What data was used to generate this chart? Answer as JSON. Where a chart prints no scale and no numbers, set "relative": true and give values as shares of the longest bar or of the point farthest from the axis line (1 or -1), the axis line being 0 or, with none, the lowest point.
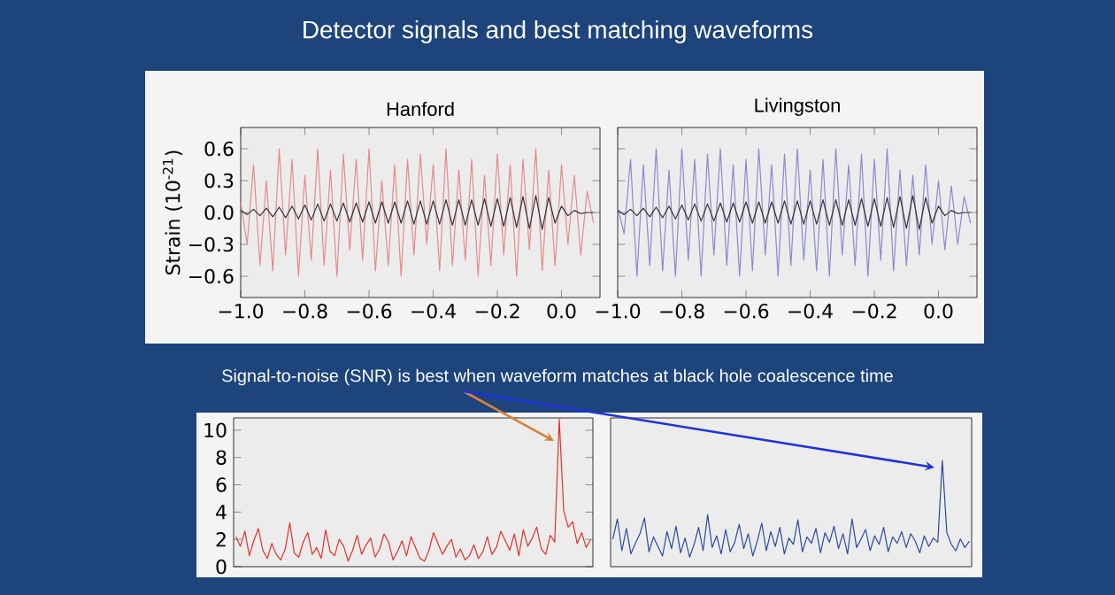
{
  "chart_data": [
    {
      "type": "line",
      "title": "Hanford",
      "ylabel": "Strain (10$^{-21}$)",
      "annotations": [
        "Detector signals and best matching waveforms"
      ],
      "x": [
        -1.0,
        -0.98,
        -0.96,
        -0.94,
        -0.92,
        -0.9,
        -0.88,
        -0.86,
        -0.84,
        -0.82,
        -0.8,
        -0.78,
        -0.76,
        -0.74,
        -0.72,
        -0.7,
        -0.68,
        -0.66,
        -0.64,
        -0.62,
        -0.6,
        -0.58,
        -0.56,
        -0.54,
        -0.52,
        -0.5,
        -0.48,
        -0.46,
        -0.44,
        -0.42,
        -0.4,
        -0.38,
        -0.36,
        -0.34,
        -0.32,
        -0.3,
        -0.28,
        -0.26,
        -0.24,
        -0.22,
        -0.2,
        -0.18,
        -0.16,
        -0.14,
        -0.12,
        -0.1,
        -0.08,
        -0.06,
        -0.04,
        -0.02,
        0.0,
        0.02,
        0.04,
        0.06,
        0.08,
        0.1
      ],
      "xlim": [
        -1.0,
        0.12
      ],
      "ylim": [
        -0.8,
        0.8
      ],
      "xticks": [
        {
          "value": -1.0,
          "label": "−1.0"
        },
        {
          "value": -0.8,
          "label": "−0.8"
        },
        {
          "value": -0.6,
          "label": "−0.6"
        },
        {
          "value": -0.4,
          "label": "−0.4"
        },
        {
          "value": -0.2,
          "label": "−0.2"
        },
        {
          "value": 0.0,
          "label": "0.0"
        }
      ],
      "yticks": [
        {
          "value": -0.6,
          "label": "−0.6"
        },
        {
          "value": -0.3,
          "label": "−0.3"
        },
        {
          "value": 0.0,
          "label": "0.0"
        },
        {
          "value": 0.3,
          "label": "0.3"
        },
        {
          "value": 0.6,
          "label": "0.6"
        }
      ],
      "series": [
        {
          "color": "#e48a8e",
          "values": [
            0.1,
            -0.3,
            0.45,
            -0.5,
            0.3,
            -0.55,
            0.6,
            -0.4,
            0.5,
            -0.6,
            0.35,
            -0.45,
            0.6,
            -0.5,
            0.4,
            -0.6,
            0.55,
            -0.35,
            0.5,
            -0.45,
            0.6,
            -0.55,
            0.3,
            -0.5,
            0.45,
            -0.6,
            0.5,
            -0.4,
            0.55,
            -0.3,
            0.45,
            -0.55,
            0.6,
            -0.5,
            0.4,
            -0.45,
            0.5,
            -0.6,
            0.35,
            -0.5,
            0.55,
            -0.4,
            0.45,
            -0.6,
            0.5,
            -0.35,
            0.6,
            -0.55,
            0.4,
            -0.5,
            0.45,
            -0.3,
            0.35,
            -0.4,
            0.2,
            -0.1
          ]
        },
        {
          "color": "#333333",
          "values": [
            0.02,
            -0.02,
            0.03,
            -0.03,
            0.04,
            -0.04,
            0.05,
            -0.05,
            0.06,
            -0.06,
            0.07,
            -0.07,
            0.08,
            -0.08,
            0.08,
            -0.08,
            0.09,
            -0.09,
            0.09,
            -0.09,
            0.1,
            -0.1,
            0.1,
            -0.1,
            0.1,
            -0.1,
            0.11,
            -0.11,
            0.11,
            -0.11,
            0.11,
            -0.11,
            0.12,
            -0.12,
            0.12,
            -0.12,
            0.12,
            -0.12,
            0.13,
            -0.13,
            0.13,
            -0.13,
            0.14,
            -0.14,
            0.15,
            -0.15,
            0.16,
            -0.16,
            0.14,
            -0.1,
            0.06,
            -0.03,
            0.02,
            -0.01,
            0.0,
            0.0
          ]
        }
      ]
    },
    {
      "type": "line",
      "title": "Livingston",
      "tick_labels": "x",
      "x": [
        -1.0,
        -0.98,
        -0.96,
        -0.94,
        -0.92,
        -0.9,
        -0.88,
        -0.86,
        -0.84,
        -0.82,
        -0.8,
        -0.78,
        -0.76,
        -0.74,
        -0.72,
        -0.7,
        -0.68,
        -0.66,
        -0.64,
        -0.62,
        -0.6,
        -0.58,
        -0.56,
        -0.54,
        -0.52,
        -0.5,
        -0.48,
        -0.46,
        -0.44,
        -0.42,
        -0.4,
        -0.38,
        -0.36,
        -0.34,
        -0.32,
        -0.3,
        -0.28,
        -0.26,
        -0.24,
        -0.22,
        -0.2,
        -0.18,
        -0.16,
        -0.14,
        -0.12,
        -0.1,
        -0.08,
        -0.06,
        -0.04,
        -0.02,
        0.0,
        0.02,
        0.04,
        0.06,
        0.08,
        0.1
      ],
      "xlim": [
        -1.0,
        0.12
      ],
      "ylim": [
        -0.8,
        0.8
      ],
      "xticks": [
        {
          "value": -1.0,
          "label": "−1.0"
        },
        {
          "value": -0.8,
          "label": "−0.8"
        },
        {
          "value": -0.6,
          "label": "−0.6"
        },
        {
          "value": -0.4,
          "label": "−0.4"
        },
        {
          "value": -0.2,
          "label": "−0.2"
        },
        {
          "value": 0.0,
          "label": "0.0"
        }
      ],
      "yticks": [
        {
          "value": -0.6,
          "label": null
        },
        {
          "value": -0.3,
          "label": null
        },
        {
          "value": 0.0,
          "label": null
        },
        {
          "value": 0.3,
          "label": null
        },
        {
          "value": 0.6,
          "label": null
        }
      ],
      "series": [
        {
          "color": "#8a8ad0",
          "values": [
            0.05,
            -0.2,
            0.5,
            -0.6,
            0.45,
            -0.5,
            0.6,
            -0.55,
            0.4,
            -0.6,
            0.6,
            -0.45,
            0.5,
            -0.6,
            0.55,
            -0.4,
            0.6,
            -0.5,
            0.45,
            -0.6,
            0.5,
            -0.55,
            0.6,
            -0.4,
            0.45,
            -0.6,
            0.55,
            -0.5,
            0.6,
            -0.45,
            0.4,
            -0.55,
            0.5,
            -0.6,
            0.6,
            -0.4,
            0.45,
            -0.5,
            0.55,
            -0.6,
            0.5,
            -0.45,
            0.6,
            -0.55,
            0.4,
            -0.5,
            0.35,
            -0.4,
            0.45,
            -0.3,
            0.3,
            -0.35,
            0.25,
            -0.3,
            0.15,
            -0.1
          ]
        },
        {
          "color": "#333333",
          "values": [
            0.02,
            -0.02,
            0.03,
            -0.03,
            0.04,
            -0.04,
            0.05,
            -0.05,
            0.06,
            -0.06,
            0.07,
            -0.07,
            0.08,
            -0.08,
            0.08,
            -0.08,
            0.09,
            -0.09,
            0.09,
            -0.09,
            0.1,
            -0.1,
            0.1,
            -0.1,
            0.1,
            -0.1,
            0.11,
            -0.11,
            0.11,
            -0.11,
            0.11,
            -0.11,
            0.12,
            -0.12,
            0.12,
            -0.12,
            0.12,
            -0.12,
            0.13,
            -0.13,
            0.13,
            -0.13,
            0.14,
            -0.14,
            0.15,
            -0.15,
            0.16,
            -0.16,
            0.14,
            -0.1,
            0.06,
            -0.03,
            0.02,
            -0.01,
            0.0,
            0.0
          ]
        }
      ]
    },
    {
      "type": "line",
      "tick_labels": "y",
      "annotations": [
        "Signal-to-noise (SNR) is best when waveform matches at black hole coalescence time"
      ],
      "categories": [
        null,
        null,
        null,
        null,
        null,
        null,
        null,
        null,
        null,
        null,
        null,
        null,
        null,
        null,
        null,
        null,
        null,
        null,
        null,
        null,
        null,
        null,
        null,
        null,
        null,
        null,
        null,
        null,
        null,
        null,
        null,
        null,
        null,
        null,
        null,
        null,
        null,
        null,
        null,
        null,
        null,
        null,
        null,
        null,
        null,
        null,
        null,
        null,
        null,
        null,
        null,
        null,
        null,
        null,
        null,
        null,
        null,
        null,
        null,
        null,
        null,
        null,
        null,
        null,
        null,
        null,
        null,
        null,
        null,
        null,
        null,
        null,
        null,
        null,
        null,
        null,
        null,
        null,
        null,
        null
      ],
      "ylim": [
        0,
        10.9
      ],
      "yticks": [
        0,
        2,
        4,
        6,
        8,
        10
      ],
      "series": [
        {
          "color": "#e0302a",
          "values": [
            2.2,
            1.5,
            2.6,
            0.8,
            1.9,
            2.8,
            1.2,
            0.6,
            1.7,
            0.9,
            0.5,
            1.3,
            3.2,
            1.0,
            0.7,
            1.8,
            2.5,
            0.9,
            1.4,
            0.6,
            2.7,
            1.1,
            0.8,
            2.0,
            1.5,
            0.4,
            1.2,
            2.3,
            0.9,
            1.6,
            2.1,
            0.7,
            1.3,
            2.4,
            1.8,
            0.5,
            1.1,
            1.9,
            0.8,
            2.2,
            1.4,
            0.6,
            0.4,
            1.2,
            2.5,
            1.7,
            0.9,
            1.5,
            2.0,
            0.7,
            1.3,
            0.5,
            0.8,
            1.6,
            0.6,
            1.1,
            2.2,
            0.9,
            1.4,
            2.6,
            1.9,
            1.2,
            2.4,
            0.8,
            2.7,
            1.5,
            2.1,
            2.9,
            1.3,
            0.9,
            2.3,
            1.8,
            10.8,
            4.1,
            2.9,
            3.3,
            1.7,
            2.5,
            1.4,
            2.0
          ]
        }
      ]
    },
    {
      "type": "line",
      "relative": true,
      "tick_labels": false,
      "categories": [
        null,
        null,
        null,
        null,
        null,
        null,
        null,
        null,
        null,
        null,
        null,
        null,
        null,
        null,
        null,
        null,
        null,
        null,
        null,
        null,
        null,
        null,
        null,
        null,
        null,
        null,
        null,
        null,
        null,
        null,
        null,
        null,
        null,
        null,
        null,
        null,
        null,
        null,
        null,
        null,
        null,
        null,
        null,
        null,
        null,
        null,
        null,
        null,
        null,
        null,
        null,
        null,
        null,
        null,
        null,
        null,
        null,
        null,
        null,
        null,
        null,
        null,
        null,
        null,
        null,
        null,
        null,
        null,
        null,
        null,
        null,
        null,
        null,
        null,
        null,
        null,
        null,
        null,
        null,
        null
      ],
      "series": [
        {
          "color": "#2a4aa0",
          "values": [
            0.26,
            0.45,
            0.15,
            0.36,
            0.12,
            0.22,
            0.31,
            0.46,
            0.14,
            0.28,
            0.19,
            0.1,
            0.33,
            0.17,
            0.38,
            0.13,
            0.27,
            0.09,
            0.21,
            0.37,
            0.15,
            0.49,
            0.18,
            0.29,
            0.12,
            0.35,
            0.14,
            0.23,
            0.4,
            0.17,
            0.31,
            0.1,
            0.24,
            0.41,
            0.15,
            0.33,
            0.19,
            0.37,
            0.12,
            0.27,
            0.21,
            0.44,
            0.14,
            0.28,
            0.22,
            0.36,
            0.13,
            0.32,
            0.23,
            0.38,
            0.17,
            0.31,
            0.12,
            0.45,
            0.18,
            0.26,
            0.35,
            0.15,
            0.29,
            0.21,
            0.37,
            0.14,
            0.28,
            0.22,
            0.33,
            0.18,
            0.31,
            0.24,
            0.13,
            0.29,
            0.19,
            0.27,
            0.23,
            1,
            0.32,
            0.21,
            0.15,
            0.26,
            0.18,
            0.24
          ]
        }
      ]
    }
  ]
}
